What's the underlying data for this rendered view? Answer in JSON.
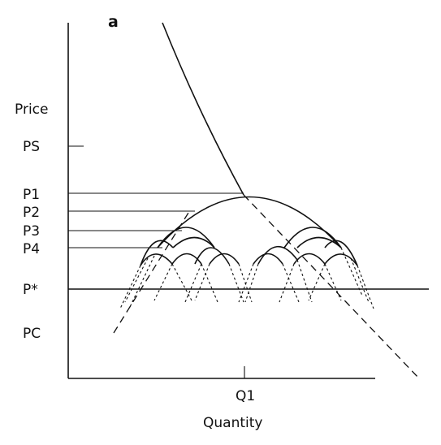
{
  "panel_label": "a",
  "y_axis_label": "Price",
  "x_axis_label": "Quantity",
  "price_levels": [
    {
      "key": "ps",
      "label": "PS"
    },
    {
      "key": "p1",
      "label": "P1"
    },
    {
      "key": "p2",
      "label": "P2"
    },
    {
      "key": "p3",
      "label": "P3"
    },
    {
      "key": "p4",
      "label": "P4"
    },
    {
      "key": "pstar",
      "label": "P*"
    },
    {
      "key": "pc",
      "label": "PC"
    }
  ],
  "x_marker": {
    "label": "Q1"
  },
  "colors": {
    "ink": "#111111",
    "paper": "#ffffff"
  }
}
